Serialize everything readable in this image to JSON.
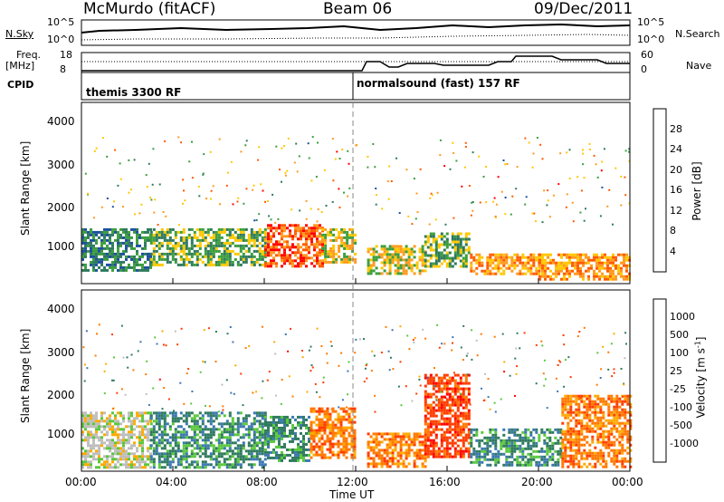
{
  "header": {
    "station": "McMurdo (fitACF)",
    "beam": "Beam 06",
    "date": "09/Dec/2011"
  },
  "top_panels": {
    "nsky_label": "N.Sky",
    "nsky_ticks": [
      "10^5",
      "10^0"
    ],
    "nsearch_label": "N.Search",
    "nsearch_ticks": [
      "10^5",
      "10^0"
    ],
    "freq_label": "Freq.",
    "freq_unit": "[MHz]",
    "freq_ticks": [
      "18",
      "8"
    ],
    "nave_label": "Nave",
    "nave_ticks": [
      "60",
      "0"
    ],
    "cpid_label": "CPID",
    "cpid_modes": [
      "themis 3300 RF",
      "normalsound (fast) 157 RF"
    ]
  },
  "axes": {
    "ylabel": "Slant Range [km]",
    "yticks": [
      "4000",
      "3000",
      "2000",
      "1000"
    ],
    "xlabel": "Time UT",
    "xticks": [
      "00:00",
      "04:00",
      "08:00",
      "12:00",
      "16:00",
      "20:00",
      "00:00"
    ]
  },
  "power_scale": {
    "label": "Power [dB]",
    "ticks": [
      "28",
      "24",
      "20",
      "16",
      "12",
      "8",
      "4"
    ],
    "colors": [
      "#ff0000",
      "#ff5a00",
      "#ff9a1e",
      "#ffc800",
      "#3c9e3c",
      "#2e7a5e",
      "#1e50a0",
      "#0000ff"
    ]
  },
  "velocity_scale": {
    "label": "Velocity [m s",
    "label_sup": "-1",
    "label_end": "]",
    "ticks": [
      "1000",
      "500",
      "100",
      "25",
      "-25",
      "-100",
      "-500",
      "-1000"
    ],
    "colors": [
      "#1e3cc8",
      "#3c78b4",
      "#2e7a5e",
      "#5ac83c",
      "#bebebe",
      "#ffaa00",
      "#ff7800",
      "#ff3c00",
      "#ff0000"
    ]
  },
  "chart_data": [
    {
      "type": "heatmap",
      "title": "",
      "xlabel": "Time UT",
      "ylabel": "Slant Range [km]",
      "xlim_hours": [
        0,
        24
      ],
      "ylim_km": [
        180,
        4500
      ],
      "colorbar": "Power [dB]",
      "colorbar_range": [
        0,
        32
      ],
      "bands": [
        {
          "t": [
            0,
            3
          ],
          "r": [
            500,
            1500
          ],
          "power": 12
        },
        {
          "t": [
            3,
            8
          ],
          "r": [
            600,
            1500
          ],
          "power": 16
        },
        {
          "t": [
            8,
            10.5
          ],
          "r": [
            600,
            1600
          ],
          "power": 28
        },
        {
          "t": [
            10.5,
            12
          ],
          "r": [
            700,
            1500
          ],
          "power": 20
        },
        {
          "t": [
            12.5,
            15
          ],
          "r": [
            400,
            1100
          ],
          "power": 20
        },
        {
          "t": [
            15,
            17
          ],
          "r": [
            600,
            1400
          ],
          "power": 16
        },
        {
          "t": [
            17,
            20
          ],
          "r": [
            400,
            900
          ],
          "power": 24
        },
        {
          "t": [
            20,
            24
          ],
          "r": [
            300,
            900
          ],
          "power": 24
        }
      ]
    },
    {
      "type": "heatmap",
      "title": "",
      "xlabel": "Time UT",
      "ylabel": "Slant Range [km]",
      "xlim_hours": [
        0,
        24
      ],
      "ylim_km": [
        180,
        4500
      ],
      "colorbar": "Velocity [m s-1]",
      "colorbar_range": [
        -1000,
        1000
      ],
      "bands": [
        {
          "t": [
            0,
            3
          ],
          "r": [
            300,
            1600
          ],
          "velocity": 25
        },
        {
          "t": [
            3,
            8
          ],
          "r": [
            300,
            1600
          ],
          "velocity": 100
        },
        {
          "t": [
            8,
            10
          ],
          "r": [
            400,
            1500
          ],
          "velocity": 300
        },
        {
          "t": [
            10,
            12
          ],
          "r": [
            500,
            1700
          ],
          "velocity": -300
        },
        {
          "t": [
            12.5,
            15
          ],
          "r": [
            300,
            1100
          ],
          "velocity": -300
        },
        {
          "t": [
            15,
            17
          ],
          "r": [
            500,
            2500
          ],
          "velocity": -500
        },
        {
          "t": [
            17,
            21
          ],
          "r": [
            300,
            1200
          ],
          "velocity": 300
        },
        {
          "t": [
            21,
            24
          ],
          "r": [
            300,
            2000
          ],
          "velocity": -300
        }
      ]
    }
  ]
}
